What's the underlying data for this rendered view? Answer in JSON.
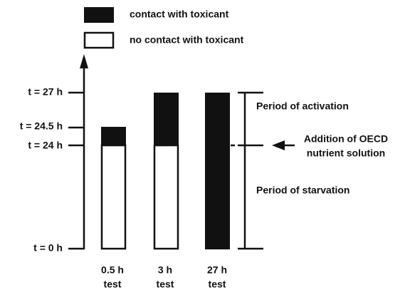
{
  "legend": [
    {
      "label": "contact with toxicant"
    },
    {
      "label": "no contact with toxicant"
    }
  ],
  "axis": {
    "ticks": [
      "t = 27 h",
      "t = 24.5 h",
      "t = 24 h",
      "t = 0 h"
    ]
  },
  "bars": [
    {
      "label": [
        "0.5 h",
        "test"
      ]
    },
    {
      "label": [
        "3 h",
        "test"
      ]
    },
    {
      "label": [
        "27 h",
        "test"
      ]
    }
  ],
  "annotations": {
    "activation": "Period of activation",
    "addition": [
      "Addition of OECD",
      "nutrient solution"
    ],
    "starvation": "Period of starvation"
  }
}
